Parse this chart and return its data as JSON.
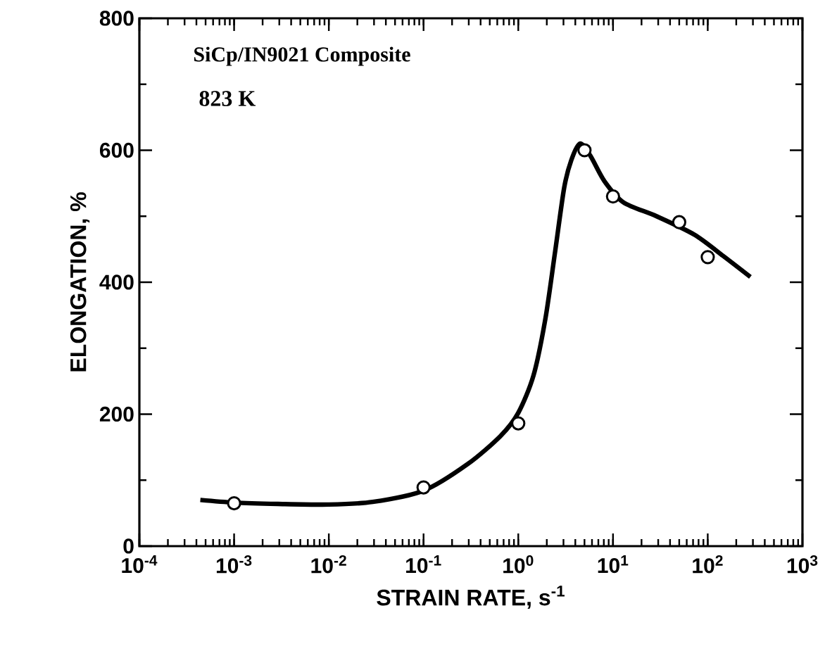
{
  "chart_data": {
    "type": "scatter",
    "xlabel": "STRAIN RATE,  s$^{-1}$",
    "ylabel": "ELONGATION, %",
    "log": "x",
    "xlim": [
      0.0001,
      1000
    ],
    "ylim": [
      0,
      800
    ],
    "xticks": [
      {
        "value": 0.0001,
        "label": "10$^{-4}$"
      },
      {
        "value": 0.001,
        "label": "10$^{-3}$"
      },
      {
        "value": 0.01,
        "label": "10$^{-2}$"
      },
      {
        "value": 0.1,
        "label": "10$^{-1}$"
      },
      {
        "value": 1,
        "label": "10$^{0}$"
      },
      {
        "value": 10,
        "label": "10$^{1}$"
      },
      {
        "value": 100,
        "label": "10$^{2}$"
      },
      {
        "value": 1000,
        "label": "10$^{3}$"
      }
    ],
    "yticks": [
      0,
      200,
      400,
      600,
      800
    ],
    "annotations": [
      "SiCp/IN9021 Composite",
      "823 K"
    ],
    "grid": false,
    "series": [
      {
        "type": "line",
        "color": "#000000",
        "marker": "none",
        "line_style": "solid",
        "x": [
          0.00044,
          0.001,
          0.0029,
          0.01,
          0.029,
          0.1,
          0.29,
          0.65,
          1,
          1.45,
          1.93,
          2.43,
          3.05,
          3.63,
          4.47,
          5.75,
          8.13,
          12.9,
          28.8,
          72.4,
          145,
          282
        ],
        "values": [
          70,
          66,
          64,
          63,
          67,
          84,
          124,
          167,
          202,
          259,
          344,
          443,
          543,
          585,
          610,
          592,
          553,
          521,
          500,
          472,
          440,
          408
        ]
      },
      {
        "color": "#000000",
        "marker": "circle",
        "x": [
          0.001,
          0.1,
          1,
          5,
          10,
          50,
          100
        ],
        "values": [
          65,
          89,
          186,
          600,
          530,
          491,
          438
        ]
      }
    ]
  }
}
